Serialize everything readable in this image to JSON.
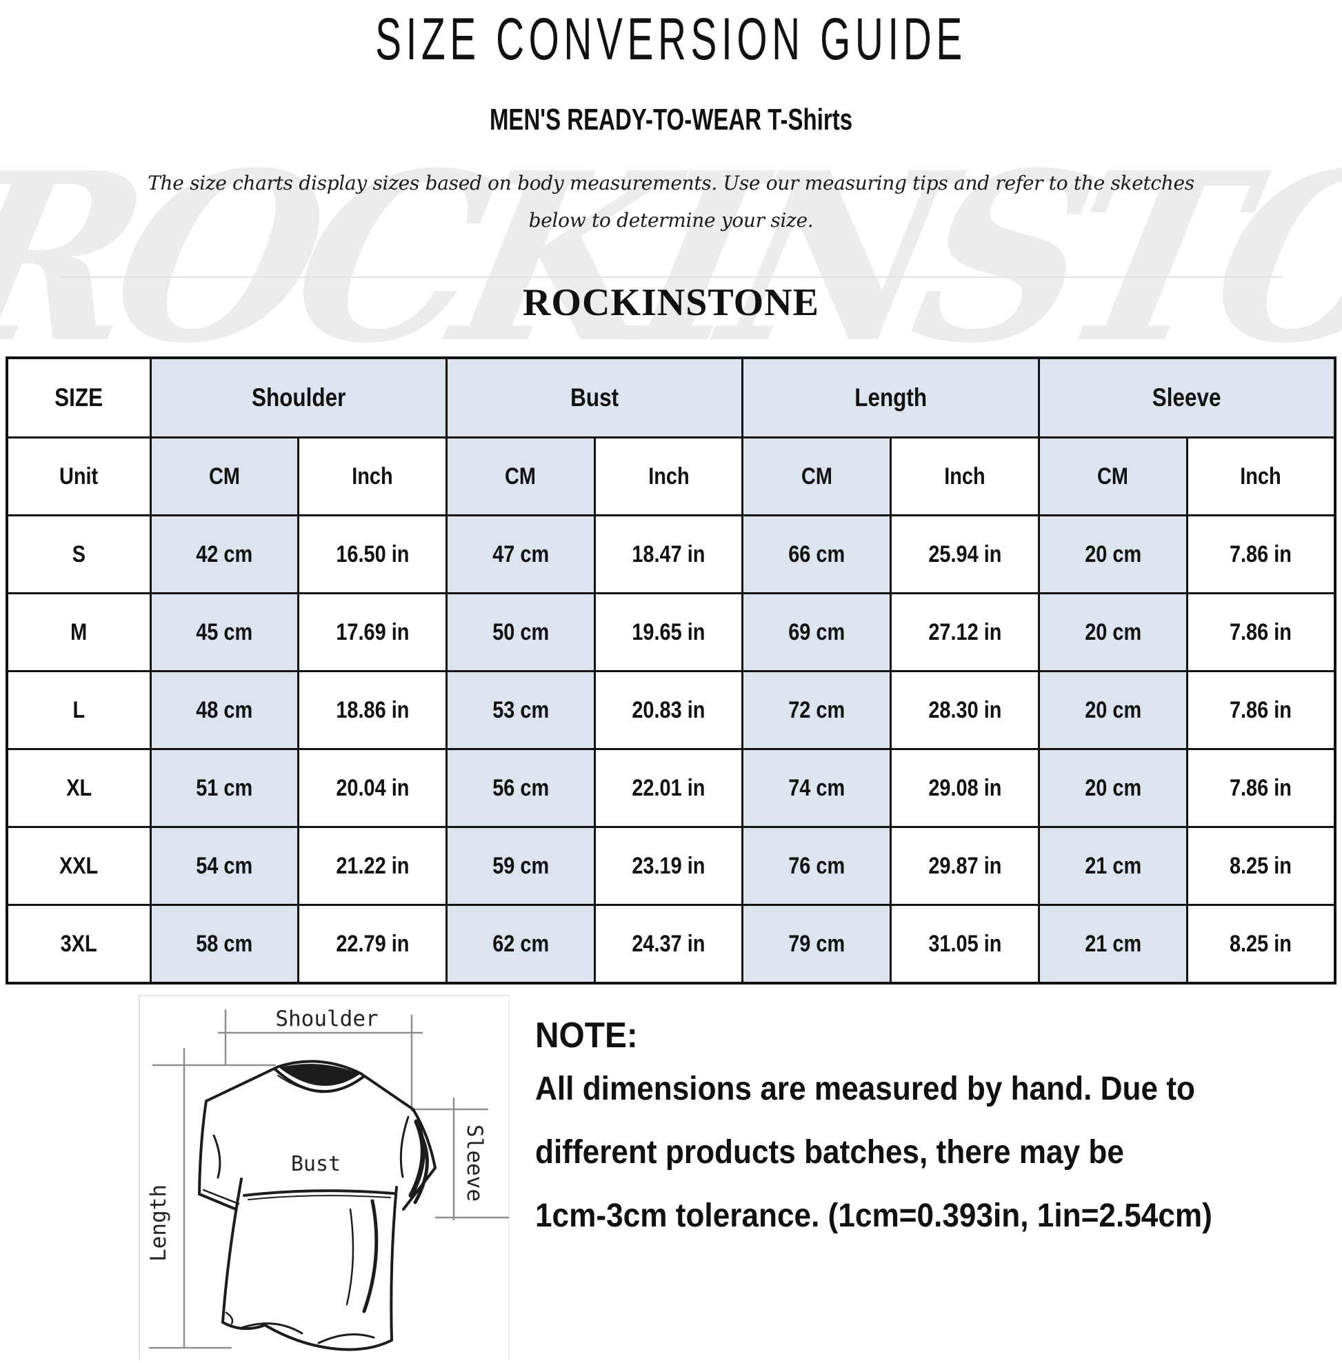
{
  "header": {
    "title": "SIZE CONVERSION GUIDE",
    "subtitle_caps": "MEN'S READY-TO-WEAR",
    "subtitle_product": "T-Shirts",
    "description_line1": "The size charts display sizes based on body measurements.  Use our measuring tips and refer to the sketches",
    "description_line2": "below to determine your size.",
    "brand": "ROCKINSTONE",
    "watermark": "ROCKINSTONE"
  },
  "table": {
    "size_header": "SIZE",
    "unit_header": "Unit",
    "unit_cm": "CM",
    "unit_inch": "Inch",
    "col_groups": [
      "Shoulder",
      "Bust",
      "Length",
      "Sleeve"
    ],
    "rows": [
      {
        "size": "S",
        "shoulder_cm": "42 cm",
        "shoulder_in": "16.50 in",
        "bust_cm": "47 cm",
        "bust_in": "18.47 in",
        "length_cm": "66 cm",
        "length_in": "25.94 in",
        "sleeve_cm": "20 cm",
        "sleeve_in": "7.86 in"
      },
      {
        "size": "M",
        "shoulder_cm": "45 cm",
        "shoulder_in": "17.69 in",
        "bust_cm": "50 cm",
        "bust_in": "19.65 in",
        "length_cm": "69 cm",
        "length_in": "27.12 in",
        "sleeve_cm": "20 cm",
        "sleeve_in": "7.86 in"
      },
      {
        "size": "L",
        "shoulder_cm": "48 cm",
        "shoulder_in": "18.86 in",
        "bust_cm": "53 cm",
        "bust_in": "20.83 in",
        "length_cm": "72 cm",
        "length_in": "28.30 in",
        "sleeve_cm": "20 cm",
        "sleeve_in": "7.86 in"
      },
      {
        "size": "XL",
        "shoulder_cm": "51 cm",
        "shoulder_in": "20.04 in",
        "bust_cm": "56 cm",
        "bust_in": "22.01 in",
        "length_cm": "74 cm",
        "length_in": "29.08 in",
        "sleeve_cm": "20 cm",
        "sleeve_in": "7.86 in"
      },
      {
        "size": "XXL",
        "shoulder_cm": "54 cm",
        "shoulder_in": "21.22 in",
        "bust_cm": "59 cm",
        "bust_in": "23.19 in",
        "length_cm": "76 cm",
        "length_in": "29.87 in",
        "sleeve_cm": "21 cm",
        "sleeve_in": "8.25 in"
      },
      {
        "size": "3XL",
        "shoulder_cm": "58 cm",
        "shoulder_in": "22.79 in",
        "bust_cm": "62 cm",
        "bust_in": "24.37 in",
        "length_cm": "79 cm",
        "length_in": "31.05 in",
        "sleeve_cm": "21 cm",
        "sleeve_in": "8.25 in"
      }
    ]
  },
  "diagram": {
    "shoulder_label": "Shoulder",
    "bust_label": "Bust",
    "length_label": "Length",
    "sleeve_label": "Sleeve"
  },
  "note": {
    "heading": "NOTE:",
    "line1": "All dimensions are measured by hand. Due to",
    "line2": "different products batches, there may be",
    "line3": "1cm-3cm tolerance. (1cm=0.393in, 1in=2.54cm)"
  },
  "colors": {
    "cell_blue": "#dbe4ef",
    "table_border": "#121212",
    "watermark_gray": "#ececec",
    "sketch_ink": "#1c1c1c",
    "dim_line_gray": "#8f8f8f"
  }
}
